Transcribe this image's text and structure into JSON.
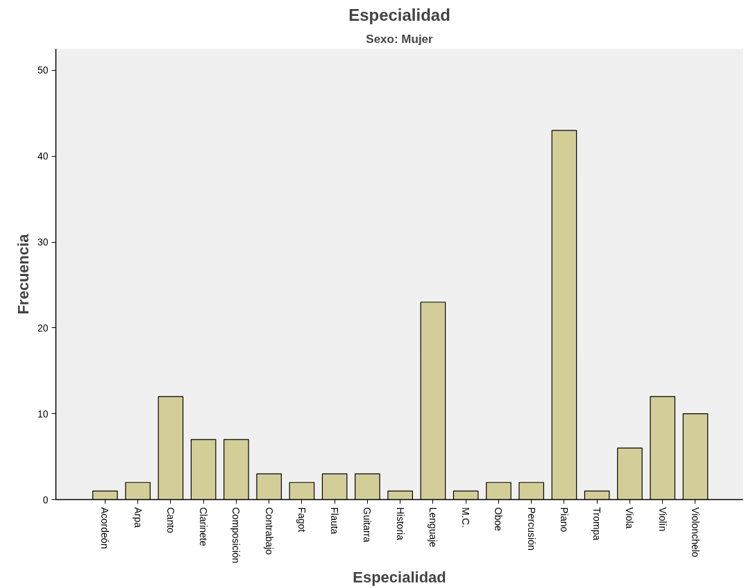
{
  "chart_data": {
    "type": "bar",
    "title": "Especialidad",
    "subtitle": "Sexo: Mujer",
    "xlabel": "Especialidad",
    "ylabel": "Frecuencia",
    "categories": [
      "Acordeón",
      "Arpa",
      "Canto",
      "Clarinete",
      "Composición",
      "Contrabajo",
      "Fagot",
      "Flauta",
      "Guitarra",
      "Historia",
      "Lenguaje",
      "M.C.",
      "Oboe",
      "Percusión",
      "Piano",
      "Trompa",
      "Viola",
      "Violín",
      "Violonchelo"
    ],
    "values": [
      1,
      2,
      12,
      7,
      7,
      3,
      2,
      3,
      3,
      1,
      23,
      1,
      2,
      2,
      43,
      1,
      6,
      12,
      10
    ],
    "color": "#d3ce97",
    "ylim": [
      0,
      52.5
    ],
    "yticks": [
      0,
      10,
      20,
      30,
      40,
      50
    ],
    "grid": false
  }
}
